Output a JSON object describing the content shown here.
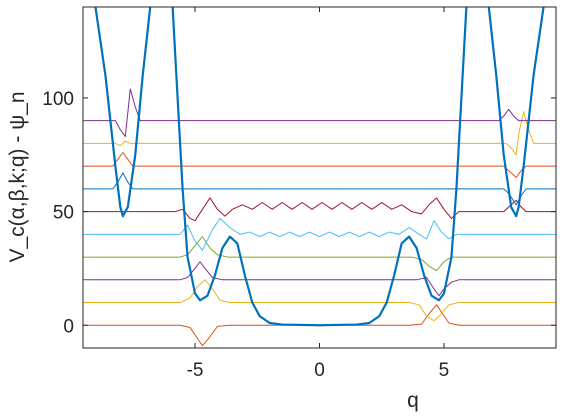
{
  "chart_data": {
    "type": "line",
    "xlabel": "q",
    "ylabel": "V_c(α,β,k;q) - ψ_n",
    "xlim": [
      -9.5,
      9.5
    ],
    "ylim": [
      -10,
      140
    ],
    "xticks": [
      -5,
      0,
      5
    ],
    "yticks": [
      0,
      50,
      100
    ],
    "xtick_labels": [
      "-5",
      "0",
      "5"
    ],
    "ytick_labels": [
      "0",
      "50",
      "100"
    ],
    "grid": false,
    "legend": "none",
    "potential": {
      "color": "#0072BD",
      "points": [
        [
          -9.0,
          140
        ],
        [
          -8.6,
          110
        ],
        [
          -8.2,
          70
        ],
        [
          -8.0,
          52
        ],
        [
          -7.9,
          48
        ],
        [
          -7.7,
          52
        ],
        [
          -7.4,
          75
        ],
        [
          -7.1,
          110
        ],
        [
          -6.8,
          140
        ],
        [
          -5.9,
          140
        ],
        [
          -5.7,
          100
        ],
        [
          -5.5,
          60
        ],
        [
          -5.3,
          30
        ],
        [
          -5.0,
          14
        ],
        [
          -4.8,
          11
        ],
        [
          -4.5,
          13
        ],
        [
          -4.2,
          22
        ],
        [
          -3.9,
          34
        ],
        [
          -3.6,
          39
        ],
        [
          -3.3,
          36
        ],
        [
          -3.0,
          22
        ],
        [
          -2.7,
          10
        ],
        [
          -2.4,
          4
        ],
        [
          -2.0,
          1
        ],
        [
          -1.5,
          0.3
        ],
        [
          0,
          0
        ],
        [
          1.5,
          0.3
        ],
        [
          2.0,
          1
        ],
        [
          2.4,
          4
        ],
        [
          2.7,
          10
        ],
        [
          3.0,
          22
        ],
        [
          3.3,
          36
        ],
        [
          3.6,
          39
        ],
        [
          3.9,
          34
        ],
        [
          4.2,
          22
        ],
        [
          4.5,
          13
        ],
        [
          4.8,
          11
        ],
        [
          5.0,
          14
        ],
        [
          5.3,
          30
        ],
        [
          5.5,
          60
        ],
        [
          5.7,
          100
        ],
        [
          5.9,
          140
        ],
        [
          6.8,
          140
        ],
        [
          7.1,
          110
        ],
        [
          7.4,
          75
        ],
        [
          7.7,
          52
        ],
        [
          7.9,
          48
        ],
        [
          8.0,
          52
        ],
        [
          8.2,
          70
        ],
        [
          8.6,
          110
        ],
        [
          9.0,
          140
        ]
      ]
    },
    "series": [
      {
        "offset": 0,
        "color": "#D95319",
        "points": [
          [
            -9.5,
            0
          ],
          [
            -5.6,
            0
          ],
          [
            -5.2,
            -1
          ],
          [
            -4.95,
            -5
          ],
          [
            -4.7,
            -9
          ],
          [
            -4.4,
            -5
          ],
          [
            -4.1,
            -0.5
          ],
          [
            -3.6,
            0
          ],
          [
            3.6,
            0
          ],
          [
            4.1,
            0.5
          ],
          [
            4.4,
            5
          ],
          [
            4.7,
            9
          ],
          [
            4.95,
            5
          ],
          [
            5.2,
            1
          ],
          [
            5.6,
            0
          ],
          [
            9.5,
            0
          ]
        ]
      },
      {
        "offset": 10,
        "color": "#EDB120",
        "points": [
          [
            -9.5,
            10
          ],
          [
            -5.6,
            10
          ],
          [
            -5.2,
            12
          ],
          [
            -4.9,
            17
          ],
          [
            -4.6,
            20
          ],
          [
            -4.3,
            16
          ],
          [
            -4.0,
            11
          ],
          [
            -3.6,
            10
          ],
          [
            3.6,
            10
          ],
          [
            4.0,
            9
          ],
          [
            4.3,
            4
          ],
          [
            4.6,
            2
          ],
          [
            4.9,
            5
          ],
          [
            5.2,
            9
          ],
          [
            5.6,
            10
          ],
          [
            9.5,
            10
          ]
        ]
      },
      {
        "offset": 20,
        "color": "#7E2F8E",
        "points": [
          [
            -9.5,
            20
          ],
          [
            -5.6,
            20
          ],
          [
            -5.3,
            21
          ],
          [
            -5.0,
            25
          ],
          [
            -4.8,
            28
          ],
          [
            -4.6,
            25
          ],
          [
            -4.3,
            21
          ],
          [
            -3.9,
            20
          ],
          [
            3.9,
            20
          ],
          [
            4.3,
            21
          ],
          [
            4.6,
            16
          ],
          [
            4.8,
            13
          ],
          [
            5.0,
            16
          ],
          [
            5.3,
            19
          ],
          [
            5.6,
            20
          ],
          [
            9.5,
            20
          ]
        ]
      },
      {
        "offset": 30,
        "color": "#77AC30",
        "points": [
          [
            -9.5,
            30
          ],
          [
            -5.6,
            30
          ],
          [
            -5.3,
            31
          ],
          [
            -5.0,
            35
          ],
          [
            -4.7,
            39
          ],
          [
            -4.4,
            34
          ],
          [
            -4.1,
            31
          ],
          [
            -3.7,
            30
          ],
          [
            3.7,
            30
          ],
          [
            4.1,
            29
          ],
          [
            4.4,
            26
          ],
          [
            4.7,
            24
          ],
          [
            5.0,
            28
          ],
          [
            5.3,
            30
          ],
          [
            5.6,
            30
          ],
          [
            9.5,
            30
          ]
        ]
      },
      {
        "offset": 40,
        "color": "#4DBEEE",
        "points": [
          [
            -9.5,
            40
          ],
          [
            -5.6,
            40
          ],
          [
            -5.3,
            44
          ],
          [
            -5.0,
            37
          ],
          [
            -4.7,
            33
          ],
          [
            -4.3,
            42
          ],
          [
            -4.0,
            47
          ],
          [
            -3.6,
            43
          ],
          [
            -3.2,
            40
          ],
          [
            -2.8,
            41
          ],
          [
            -2.4,
            39
          ],
          [
            -2.0,
            41
          ],
          [
            -1.6,
            39
          ],
          [
            -1.2,
            41
          ],
          [
            -0.8,
            39
          ],
          [
            -0.4,
            41
          ],
          [
            0,
            39
          ],
          [
            0.4,
            41
          ],
          [
            0.8,
            39
          ],
          [
            1.2,
            41
          ],
          [
            1.6,
            39
          ],
          [
            2.0,
            41
          ],
          [
            2.4,
            39
          ],
          [
            2.8,
            41
          ],
          [
            3.2,
            40
          ],
          [
            3.6,
            43
          ],
          [
            4.0,
            40
          ],
          [
            4.3,
            38
          ],
          [
            4.6,
            46
          ],
          [
            4.9,
            41
          ],
          [
            5.2,
            38
          ],
          [
            5.5,
            40
          ],
          [
            9.5,
            40
          ]
        ]
      },
      {
        "offset": 50,
        "color": "#A2142F",
        "points": [
          [
            -9.5,
            50
          ],
          [
            -5.8,
            50
          ],
          [
            -5.5,
            51
          ],
          [
            -5.2,
            47
          ],
          [
            -5.0,
            46
          ],
          [
            -4.7,
            51
          ],
          [
            -4.4,
            56
          ],
          [
            -4.1,
            51
          ],
          [
            -3.8,
            48
          ],
          [
            -3.5,
            51
          ],
          [
            -3.1,
            53
          ],
          [
            -2.7,
            51
          ],
          [
            -2.3,
            54
          ],
          [
            -1.9,
            51
          ],
          [
            -1.5,
            54
          ],
          [
            -1.1,
            51
          ],
          [
            -0.7,
            54
          ],
          [
            -0.3,
            51
          ],
          [
            0.1,
            54
          ],
          [
            0.5,
            51
          ],
          [
            0.9,
            54
          ],
          [
            1.3,
            51
          ],
          [
            1.7,
            54
          ],
          [
            2.1,
            51
          ],
          [
            2.5,
            54
          ],
          [
            2.9,
            51
          ],
          [
            3.3,
            53
          ],
          [
            3.7,
            50
          ],
          [
            4.1,
            49
          ],
          [
            4.4,
            53
          ],
          [
            4.7,
            56
          ],
          [
            5.0,
            51
          ],
          [
            5.3,
            47
          ],
          [
            5.6,
            50
          ],
          [
            6.8,
            50
          ],
          [
            7.4,
            50
          ],
          [
            7.6,
            52
          ],
          [
            7.9,
            55
          ],
          [
            8.1,
            52
          ],
          [
            8.3,
            50
          ],
          [
            9.5,
            50
          ]
        ]
      },
      {
        "offset": 60,
        "color": "#0072BD",
        "points": [
          [
            -9.5,
            60
          ],
          [
            -8.3,
            60
          ],
          [
            -8.1,
            63
          ],
          [
            -7.9,
            67
          ],
          [
            -7.7,
            63
          ],
          [
            -7.5,
            60
          ],
          [
            7.4,
            60
          ],
          [
            7.6,
            58
          ],
          [
            7.9,
            53
          ],
          [
            8.1,
            57
          ],
          [
            8.3,
            60
          ],
          [
            9.5,
            60
          ]
        ]
      },
      {
        "offset": 70,
        "color": "#D95319",
        "points": [
          [
            -9.5,
            70
          ],
          [
            -8.3,
            70
          ],
          [
            -8.1,
            73
          ],
          [
            -7.9,
            76
          ],
          [
            -7.7,
            73
          ],
          [
            -7.5,
            70
          ],
          [
            7.4,
            70
          ],
          [
            7.6,
            68
          ],
          [
            7.9,
            65
          ],
          [
            8.1,
            68
          ],
          [
            8.3,
            70
          ],
          [
            9.5,
            70
          ]
        ]
      },
      {
        "offset": 80,
        "color": "#EDB120",
        "points": [
          [
            -9.5,
            80
          ],
          [
            -8.2,
            80
          ],
          [
            -8.0,
            79
          ],
          [
            -7.8,
            81
          ],
          [
            -7.6,
            80
          ],
          [
            7.5,
            80
          ],
          [
            7.7,
            78
          ],
          [
            7.9,
            75
          ],
          [
            8.0,
            84
          ],
          [
            8.2,
            94
          ],
          [
            8.4,
            86
          ],
          [
            8.6,
            80
          ],
          [
            9.5,
            80
          ]
        ]
      },
      {
        "offset": 90,
        "color": "#7E2F8E",
        "points": [
          [
            -9.5,
            90
          ],
          [
            -8.2,
            90
          ],
          [
            -8.0,
            86
          ],
          [
            -7.8,
            83
          ],
          [
            -7.6,
            104
          ],
          [
            -7.4,
            96
          ],
          [
            -7.2,
            90
          ],
          [
            7.2,
            90
          ],
          [
            7.4,
            92
          ],
          [
            7.6,
            95
          ],
          [
            7.8,
            92
          ],
          [
            8.0,
            90
          ],
          [
            9.5,
            90
          ]
        ]
      }
    ]
  }
}
